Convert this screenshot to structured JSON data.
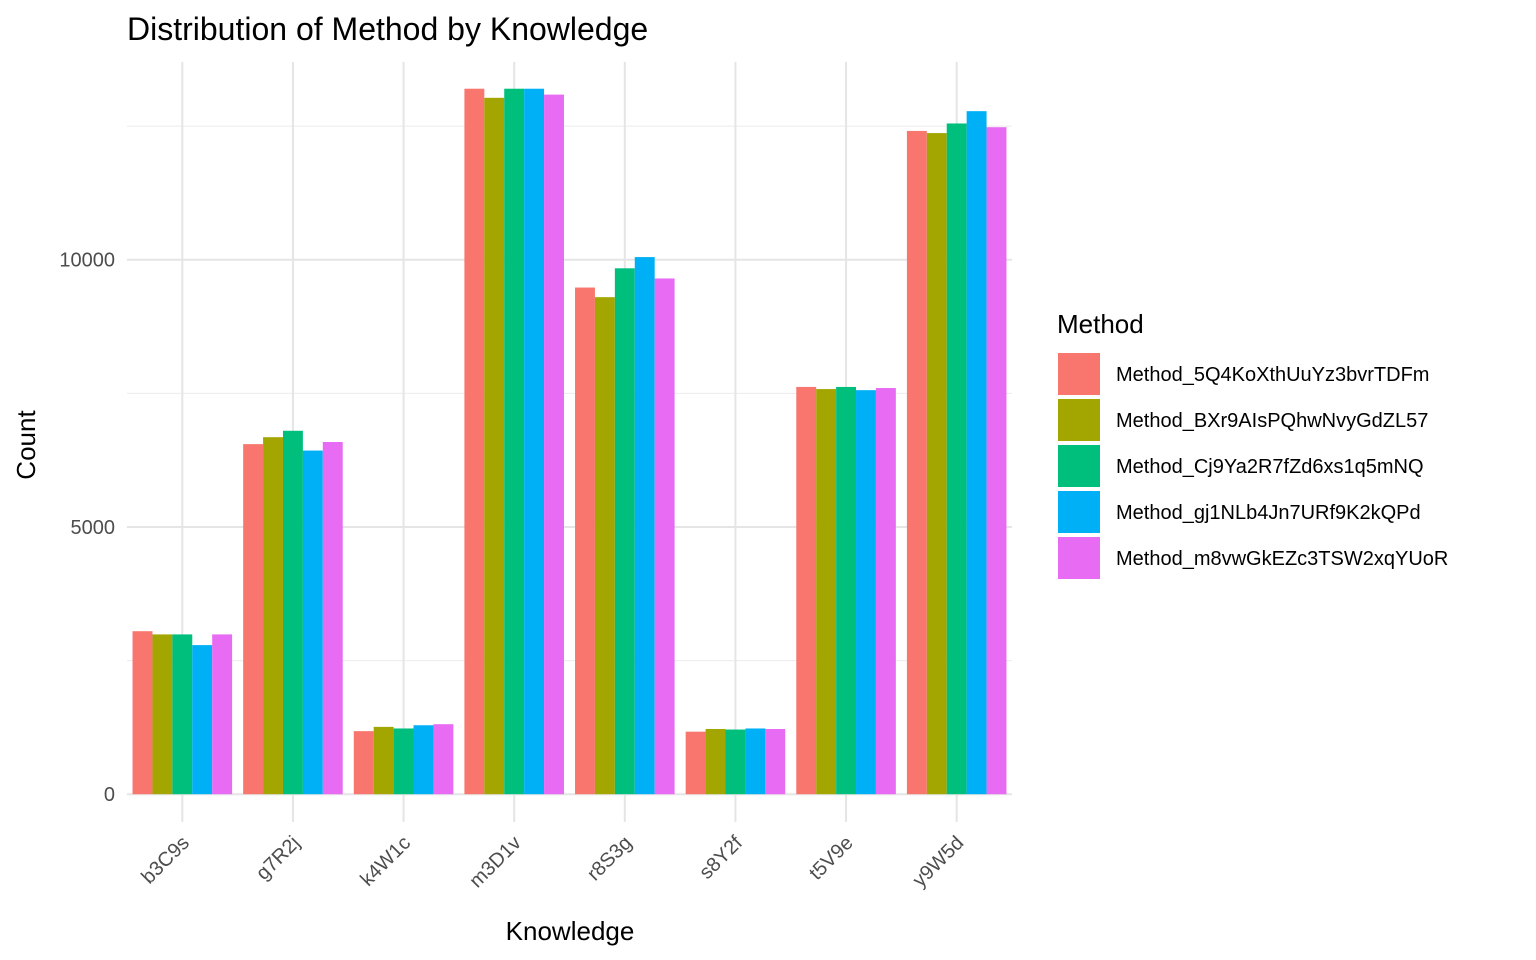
{
  "chart_data": {
    "type": "bar",
    "title": "Distribution of Method by Knowledge",
    "xlabel": "Knowledge",
    "ylabel": "Count",
    "categories": [
      "b3C9s",
      "g7R2j",
      "k4W1c",
      "m3D1v",
      "r8S3g",
      "s8Y2f",
      "t5V9e",
      "y9W5d"
    ],
    "yticks": [
      0,
      5000,
      10000
    ],
    "ylim": [
      -520,
      13700
    ],
    "grid": true,
    "legend": {
      "title": "Method",
      "placement": "right"
    },
    "series": [
      {
        "name": "Method_5Q4KoXthUuYz3bvrTDFm",
        "color": "#F8766D",
        "values": [
          3050,
          6550,
          1180,
          13200,
          9480,
          1170,
          7620,
          12410
        ]
      },
      {
        "name": "Method_BXr9AIsPQhwNvyGdZL57",
        "color": "#A3A500",
        "values": [
          2990,
          6680,
          1260,
          13030,
          9300,
          1220,
          7580,
          12370
        ]
      },
      {
        "name": "Method_Cj9Ya2R7fZd6xs1q5mNQ",
        "color": "#00BF7D",
        "values": [
          2990,
          6800,
          1230,
          13200,
          9840,
          1210,
          7620,
          12550
        ]
      },
      {
        "name": "Method_gj1NLb4Jn7URf9K2kQPd",
        "color": "#00B0F6",
        "values": [
          2790,
          6430,
          1290,
          13200,
          10050,
          1230,
          7560,
          12780
        ]
      },
      {
        "name": "Method_m8vwGkEZc3TSW2xqYUoR",
        "color": "#E76BF3",
        "values": [
          2990,
          6590,
          1310,
          13090,
          9650,
          1220,
          7600,
          12480
        ]
      }
    ]
  }
}
